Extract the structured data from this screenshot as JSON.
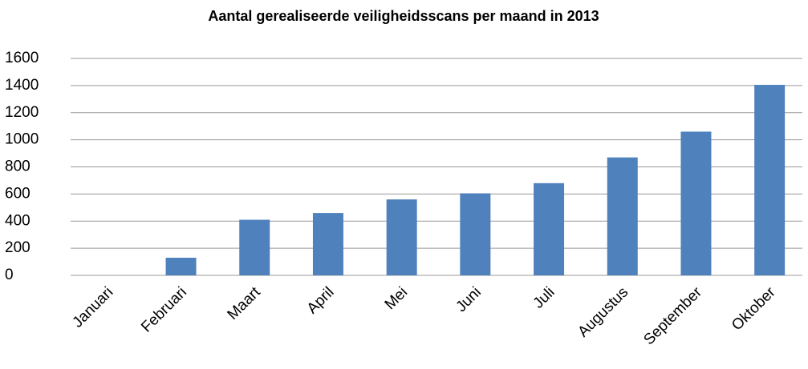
{
  "chart_data": {
    "type": "bar",
    "title": "Aantal gerealiseerde veiligheidsscans per maand in 2013",
    "categories": [
      "Januari",
      "Februari",
      "Maart",
      "April",
      "Mei",
      "Juni",
      "Juli",
      "Augustus",
      "September",
      "Oktober"
    ],
    "values": [
      0,
      130,
      410,
      460,
      560,
      605,
      680,
      870,
      1060,
      1405
    ],
    "color": "#4f81bd",
    "ylim": [
      0,
      1600
    ],
    "yticks": [
      0,
      200,
      400,
      600,
      800,
      1000,
      1200,
      1400,
      1600
    ],
    "grid": true
  }
}
